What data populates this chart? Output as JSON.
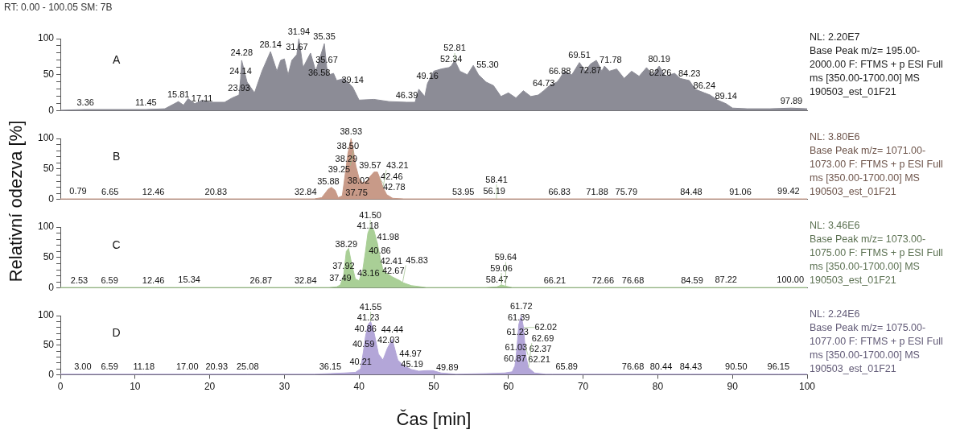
{
  "chart_data": [
    {
      "type": "area",
      "title": "A",
      "subtitle": "RT: 0.00 - 100.05 SM: 7B",
      "color": "#8c8c96",
      "x": [
        0,
        3.36,
        11.45,
        14,
        15.81,
        16.5,
        17.11,
        18,
        19,
        20,
        22,
        23,
        23.93,
        24.14,
        24.28,
        25,
        26,
        27,
        28.14,
        29,
        29.5,
        30,
        30.5,
        31,
        31.67,
        31.94,
        32.5,
        33.5,
        34.2,
        35.35,
        35.67,
        36,
        36.58,
        37,
        38,
        39.14,
        40,
        42,
        44,
        46.39,
        47.5,
        48,
        48.8,
        49.16,
        50,
        51,
        52,
        52.34,
        52.81,
        53.5,
        54.5,
        55.3,
        56,
        57,
        58,
        59,
        60,
        61,
        62,
        63,
        64,
        64.73,
        65.5,
        66.5,
        66.88,
        67.5,
        68.5,
        69.51,
        70.3,
        71,
        71.78,
        72.5,
        72.87,
        73.5,
        74.5,
        75.5,
        76.5,
        77.5,
        78.5,
        79.3,
        80.19,
        81,
        82.26,
        83,
        84.23,
        85,
        86.24,
        87,
        88,
        89.14,
        90,
        92,
        95,
        97.89,
        100
      ],
      "values": [
        1,
        2,
        2,
        3,
        13,
        8,
        17,
        10,
        15,
        12,
        12,
        18,
        22,
        45,
        70,
        40,
        25,
        55,
        82,
        55,
        70,
        72,
        50,
        70,
        78,
        100,
        60,
        80,
        55,
        93,
        60,
        50,
        52,
        42,
        45,
        33,
        15,
        16,
        13,
        12,
        12,
        30,
        20,
        38,
        55,
        58,
        60,
        62,
        70,
        55,
        50,
        63,
        50,
        40,
        35,
        20,
        25,
        18,
        28,
        20,
        22,
        28,
        35,
        40,
        45,
        55,
        50,
        67,
        55,
        65,
        70,
        55,
        62,
        55,
        58,
        45,
        55,
        48,
        60,
        50,
        62,
        48,
        52,
        45,
        42,
        30,
        25,
        22,
        15,
        10,
        4,
        3,
        3,
        4,
        3
      ],
      "xlim": [
        0,
        100
      ],
      "xticks": [
        0,
        10,
        20,
        30,
        40,
        50,
        60,
        70,
        80,
        90,
        100
      ],
      "ylim": [
        0,
        100
      ],
      "yticks": [
        0,
        {
          "value": 10,
          "label": null
        },
        {
          "value": 20,
          "label": null
        },
        {
          "value": 30,
          "label": null
        },
        {
          "value": 40,
          "label": null
        },
        50,
        {
          "value": 60,
          "label": null
        },
        {
          "value": 70,
          "label": null
        },
        {
          "value": 80,
          "label": null
        },
        {
          "value": 90,
          "label": null
        },
        100
      ],
      "tick_labels": "y",
      "annotations": [
        "NL: 2.20E7",
        "Base Peak m/z= 195.00-2000.00 F: FTMS + p ESI Full ms [350.00-1700.00] MS 190503_est_01F21",
        {
          "text": "3.36",
          "x": 3.36,
          "y": 2
        },
        {
          "text": "11.45",
          "x": 11.45,
          "y": 2
        },
        {
          "text": "15.81",
          "x": 15.81,
          "y": 13
        },
        {
          "text": "17.11",
          "x": 17.11,
          "y": 17
        },
        {
          "text": "23.93",
          "x": 23.93,
          "y": 22
        },
        {
          "text": "24.14",
          "x": 24.14,
          "y": 45
        },
        {
          "text": "24.28",
          "x": 24.28,
          "y": 70
        },
        {
          "text": "28.14",
          "x": 28.14,
          "y": 82
        },
        {
          "text": "31.67",
          "x": 31.67,
          "y": 78
        },
        {
          "text": "31.94",
          "x": 31.94,
          "y": 100
        },
        {
          "text": "35.35",
          "x": 35.35,
          "y": 93
        },
        {
          "text": "35.67",
          "x": 35.67,
          "y": 60
        },
        {
          "text": "36.58",
          "x": 36.58,
          "y": 52
        },
        {
          "text": "39.14",
          "x": 39.14,
          "y": 33
        },
        {
          "text": "46.39",
          "x": 46.39,
          "y": 12
        },
        {
          "text": "49.16",
          "x": 49.16,
          "y": 38
        },
        {
          "text": "52.34",
          "x": 52.34,
          "y": 62
        },
        {
          "text": "52.81",
          "x": 52.81,
          "y": 70
        },
        {
          "text": "55.30",
          "x": 55.3,
          "y": 63
        },
        {
          "text": "64.73",
          "x": 64.73,
          "y": 28
        },
        {
          "text": "66.88",
          "x": 66.88,
          "y": 45
        },
        {
          "text": "69.51",
          "x": 69.51,
          "y": 67
        },
        {
          "text": "71.78",
          "x": 71.78,
          "y": 70
        },
        {
          "text": "72.87",
          "x": 72.87,
          "y": 62
        },
        {
          "text": "80.19",
          "x": 80.19,
          "y": 62
        },
        {
          "text": "82.26",
          "x": 82.26,
          "y": 52
        },
        {
          "text": "84.23",
          "x": 84.23,
          "y": 42
        },
        {
          "text": "86.24",
          "x": 86.24,
          "y": 25
        },
        {
          "text": "89.14",
          "x": 89.14,
          "y": 10
        },
        {
          "text": "97.89",
          "x": 97.89,
          "y": 4
        }
      ]
    },
    {
      "type": "area",
      "title": "B",
      "ylabel": "Relativní odezva [%]",
      "color": "#c89a88",
      "x": [
        0,
        0.79,
        6.65,
        12.46,
        20.83,
        32.84,
        34,
        35,
        35.88,
        36.3,
        36.8,
        37.2,
        37.75,
        38.02,
        38.29,
        38.5,
        38.93,
        39.25,
        39.57,
        40,
        40.5,
        41,
        41.5,
        42,
        42.46,
        42.78,
        43.21,
        43.7,
        44.5,
        46,
        53.95,
        56.19,
        58.41,
        66.83,
        71.88,
        75.79,
        84.48,
        91.06,
        99.42,
        100
      ],
      "values": [
        1,
        1,
        1,
        1,
        1,
        1,
        1,
        3,
        17,
        20,
        15,
        3,
        6,
        30,
        55,
        75,
        100,
        80,
        55,
        35,
        27,
        30,
        38,
        45,
        45,
        35,
        20,
        8,
        2,
        1,
        1,
        1,
        1,
        1,
        1,
        1,
        1,
        1,
        1,
        1
      ],
      "xlim": [
        0,
        100
      ],
      "xticks": [
        0,
        10,
        20,
        30,
        40,
        50,
        60,
        70,
        80,
        90,
        100
      ],
      "ylim": [
        0,
        100
      ],
      "yticks": [
        0,
        {
          "value": 10,
          "label": null
        },
        {
          "value": 20,
          "label": null
        },
        {
          "value": 30,
          "label": null
        },
        {
          "value": 40,
          "label": null
        },
        50,
        {
          "value": 60,
          "label": null
        },
        {
          "value": 70,
          "label": null
        },
        {
          "value": 80,
          "label": null
        },
        {
          "value": 90,
          "label": null
        },
        100
      ],
      "tick_labels": "y",
      "annotations": [
        "NL: 3.80E6",
        "Base Peak m/z= 1071.00-1073.00 F: FTMS + p ESI Full ms [350.00-1700.00] MS 190503_est_01F21",
        {
          "text": "0.79",
          "x": 0.79,
          "y": 1
        },
        {
          "text": "6.65",
          "x": 6.65,
          "y": 1
        },
        {
          "text": "12.46",
          "x": 12.46,
          "y": 1
        },
        {
          "text": "20.83",
          "x": 20.83,
          "y": 1
        },
        {
          "text": "32.84",
          "x": 32.84,
          "y": 1
        },
        {
          "text": "35.88",
          "x": 35.88,
          "y": 17
        },
        {
          "text": "37.75",
          "x": 37.75,
          "y": 6
        },
        {
          "text": "38.02",
          "x": 38.02,
          "y": 30
        },
        {
          "text": "38.29",
          "x": 38.29,
          "y": 55
        },
        {
          "text": "38.50",
          "x": 38.5,
          "y": 75
        },
        {
          "text": "38.93",
          "x": 38.93,
          "y": 100
        },
        {
          "text": "39.25",
          "x": 39.25,
          "y": 80
        },
        {
          "text": "39.57",
          "x": 39.57,
          "y": 55
        },
        {
          "text": "42.46",
          "x": 42.46,
          "y": 45
        },
        {
          "text": "42.78",
          "x": 42.78,
          "y": 35
        },
        {
          "text": "43.21",
          "x": 43.21,
          "y": 20
        },
        {
          "text": "53.95",
          "x": 53.95,
          "y": 1
        },
        {
          "text": "56.19",
          "x": 56.19,
          "y": 1
        },
        {
          "text": "58.41",
          "x": 58.41,
          "y": 1
        },
        {
          "text": "66.83",
          "x": 66.83,
          "y": 1
        },
        {
          "text": "71.88",
          "x": 71.88,
          "y": 1
        },
        {
          "text": "75.79",
          "x": 75.79,
          "y": 1
        },
        {
          "text": "84.48",
          "x": 84.48,
          "y": 1
        },
        {
          "text": "91.06",
          "x": 91.06,
          "y": 1
        },
        {
          "text": "99.42",
          "x": 99.42,
          "y": 1
        }
      ]
    },
    {
      "type": "area",
      "title": "C",
      "color": "#a9cf96",
      "x": [
        0,
        2.53,
        6.59,
        12.46,
        15.34,
        26.87,
        32.84,
        36,
        37,
        37.49,
        37.92,
        38.29,
        38.6,
        39,
        39.5,
        40,
        40.5,
        40.86,
        41.18,
        41.5,
        41.98,
        42.41,
        42.67,
        43.16,
        43.6,
        44.5,
        45.5,
        45.83,
        47,
        49,
        57,
        58.47,
        59.06,
        59.64,
        60.5,
        66.21,
        72.66,
        76.68,
        84.59,
        87.22,
        100
      ],
      "values": [
        1,
        1,
        1,
        1,
        1,
        1,
        1,
        1,
        2,
        5,
        20,
        60,
        65,
        40,
        15,
        12,
        30,
        60,
        90,
        100,
        95,
        75,
        55,
        32,
        25,
        18,
        12,
        9,
        4,
        1,
        1,
        2,
        5,
        3,
        1,
        1,
        1,
        1,
        1,
        1,
        1
      ],
      "xlim": [
        0,
        100
      ],
      "xticks": [
        0,
        10,
        20,
        30,
        40,
        50,
        60,
        70,
        80,
        90,
        100
      ],
      "ylim": [
        0,
        100
      ],
      "yticks": [
        0,
        {
          "value": 10,
          "label": null
        },
        {
          "value": 20,
          "label": null
        },
        {
          "value": 30,
          "label": null
        },
        {
          "value": 40,
          "label": null
        },
        50,
        {
          "value": 60,
          "label": null
        },
        {
          "value": 70,
          "label": null
        },
        {
          "value": 80,
          "label": null
        },
        {
          "value": 90,
          "label": null
        },
        100
      ],
      "tick_labels": "y",
      "annotations": [
        "NL: 3.46E6",
        "Base Peak m/z= 1073.00-1075.00 F: FTMS + p ESI Full ms [350.00-1700.00] MS 190503_est_01F21",
        {
          "text": "2.53",
          "x": 2.53,
          "y": 1
        },
        {
          "text": "6.59",
          "x": 6.59,
          "y": 1
        },
        {
          "text": "12.46",
          "x": 12.46,
          "y": 1
        },
        {
          "text": "15.34",
          "x": 15.34,
          "y": 1
        },
        {
          "text": "26.87",
          "x": 26.87,
          "y": 1
        },
        {
          "text": "32.84",
          "x": 32.84,
          "y": 1
        },
        {
          "text": "37.49",
          "x": 37.49,
          "y": 5
        },
        {
          "text": "37.92",
          "x": 37.92,
          "y": 20
        },
        {
          "text": "38.29",
          "x": 38.29,
          "y": 60
        },
        {
          "text": "40.86",
          "x": 40.86,
          "y": 60
        },
        {
          "text": "41.18",
          "x": 41.18,
          "y": 90
        },
        {
          "text": "41.50",
          "x": 41.5,
          "y": 100
        },
        {
          "text": "41.98",
          "x": 41.98,
          "y": 95
        },
        {
          "text": "42.41",
          "x": 42.41,
          "y": 75
        },
        {
          "text": "42.67",
          "x": 42.67,
          "y": 55
        },
        {
          "text": "43.16",
          "x": 43.16,
          "y": 32
        },
        {
          "text": "45.83",
          "x": 45.83,
          "y": 9
        },
        {
          "text": "58.47",
          "x": 58.47,
          "y": 2
        },
        {
          "text": "59.06",
          "x": 59.06,
          "y": 5
        },
        {
          "text": "59.64",
          "x": 59.64,
          "y": 3
        },
        {
          "text": "66.21",
          "x": 66.21,
          "y": 1
        },
        {
          "text": "72.66",
          "x": 72.66,
          "y": 1
        },
        {
          "text": "76.68",
          "x": 76.68,
          "y": 1
        },
        {
          "text": "84.59",
          "x": 84.59,
          "y": 1
        },
        {
          "text": "87.22",
          "x": 87.22,
          "y": 1
        },
        {
          "text": "100.00",
          "x": 100,
          "y": 1
        }
      ]
    },
    {
      "type": "area",
      "title": "D",
      "xlabel": "Čas [min]",
      "color": "#b3a6d8",
      "x": [
        0,
        3,
        6.59,
        11.18,
        17,
        20.93,
        25.08,
        34,
        36.15,
        38,
        39.5,
        40.21,
        40.59,
        40.86,
        41.23,
        41.55,
        42.03,
        42.6,
        43.2,
        43.8,
        44.44,
        44.97,
        45.19,
        46,
        47,
        48,
        49,
        49.89,
        51,
        53,
        57,
        59.5,
        60.5,
        60.87,
        61.03,
        61.23,
        61.39,
        61.72,
        62.02,
        62.21,
        62.37,
        62.69,
        63.5,
        65,
        65.89,
        76.68,
        80.44,
        84.43,
        90.5,
        96.15,
        100
      ],
      "values": [
        1,
        1,
        1,
        1,
        1,
        1,
        1,
        1,
        2,
        3,
        4,
        10,
        40,
        65,
        85,
        90,
        70,
        35,
        25,
        45,
        60,
        35,
        25,
        15,
        9,
        6,
        7,
        7,
        3,
        1,
        2,
        3,
        5,
        15,
        30,
        60,
        85,
        100,
        80,
        50,
        30,
        12,
        3,
        1,
        1,
        1,
        1,
        1,
        1,
        1,
        1
      ],
      "xlim": [
        0,
        100
      ],
      "xticks": [
        0,
        10,
        20,
        30,
        40,
        50,
        60,
        70,
        80,
        90,
        100
      ],
      "ylim": [
        0,
        100
      ],
      "yticks": [
        0,
        {
          "value": 10,
          "label": null
        },
        {
          "value": 20,
          "label": null
        },
        {
          "value": 30,
          "label": null
        },
        {
          "value": 40,
          "label": null
        },
        50,
        {
          "value": 60,
          "label": null
        },
        {
          "value": 70,
          "label": null
        },
        {
          "value": 80,
          "label": null
        },
        {
          "value": 90,
          "label": null
        },
        100
      ],
      "annotations": [
        "NL: 2.24E6",
        "Base Peak m/z= 1075.00-1077.00 F: FTMS + p ESI Full ms [350.00-1700.00] MS 190503_est_01F21",
        {
          "text": "3.00",
          "x": 3,
          "y": 1
        },
        {
          "text": "6.59",
          "x": 6.59,
          "y": 1
        },
        {
          "text": "11.18",
          "x": 11.18,
          "y": 1
        },
        {
          "text": "17.00",
          "x": 17,
          "y": 1
        },
        {
          "text": "20.93",
          "x": 20.93,
          "y": 1
        },
        {
          "text": "25.08",
          "x": 25.08,
          "y": 1
        },
        {
          "text": "36.15",
          "x": 36.15,
          "y": 2
        },
        {
          "text": "40.21",
          "x": 40.21,
          "y": 10
        },
        {
          "text": "40.59",
          "x": 40.59,
          "y": 40
        },
        {
          "text": "40.86",
          "x": 40.86,
          "y": 65
        },
        {
          "text": "41.23",
          "x": 41.23,
          "y": 85
        },
        {
          "text": "41.55",
          "x": 41.55,
          "y": 90
        },
        {
          "text": "42.03",
          "x": 42.03,
          "y": 70
        },
        {
          "text": "44.44",
          "x": 44.44,
          "y": 60
        },
        {
          "text": "44.97",
          "x": 44.97,
          "y": 35
        },
        {
          "text": "45.19",
          "x": 45.19,
          "y": 25
        },
        {
          "text": "49.89",
          "x": 49.89,
          "y": 7
        },
        {
          "text": "60.87",
          "x": 60.87,
          "y": 15
        },
        {
          "text": "61.03",
          "x": 61.03,
          "y": 30
        },
        {
          "text": "61.23",
          "x": 61.23,
          "y": 60
        },
        {
          "text": "61.39",
          "x": 61.39,
          "y": 85
        },
        {
          "text": "61.72",
          "x": 61.72,
          "y": 100
        },
        {
          "text": "62.02",
          "x": 62.02,
          "y": 80
        },
        {
          "text": "62.21",
          "x": 62.21,
          "y": 50
        },
        {
          "text": "62.37",
          "x": 62.37,
          "y": 30
        },
        {
          "text": "62.69",
          "x": 62.69,
          "y": 12
        },
        {
          "text": "65.89",
          "x": 65.89,
          "y": 1
        },
        {
          "text": "76.68",
          "x": 76.68,
          "y": 1
        },
        {
          "text": "80.44",
          "x": 80.44,
          "y": 1
        },
        {
          "text": "84.43",
          "x": 84.43,
          "y": 1
        },
        {
          "text": "90.50",
          "x": 90.5,
          "y": 1
        },
        {
          "text": "96.15",
          "x": 96.15,
          "y": 1
        }
      ]
    }
  ]
}
